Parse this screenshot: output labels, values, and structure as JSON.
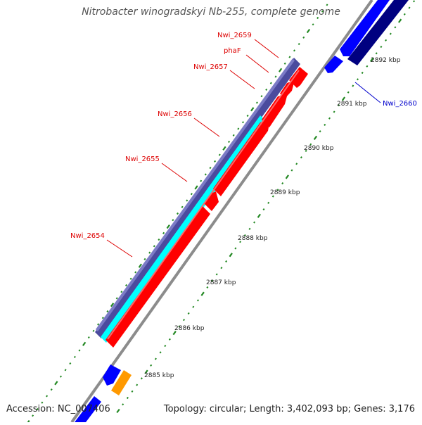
{
  "header": {
    "title": "Nitrobacter winogradskyi Nb-255, complete genome"
  },
  "footer": {
    "accession": "Accession: NC_007406",
    "summary": "Topology: circular; Length: 3,402,093 bp; Genes: 3,176"
  },
  "colors": {
    "backbone": "#8c8c8c",
    "forward_cds": "#ff0000",
    "reverse_cds": "#0000ff",
    "reverse_cds_dark": "#000080",
    "gene_group_overlay": "#4b4b9e",
    "cyan_feature": "#00ffff",
    "orange_feature": "#ff9900",
    "tick": "#228822",
    "label_forward": "#dd0000",
    "label_reverse": "#0000cc"
  },
  "gene_labels": [
    {
      "name": "Nwi_2659",
      "strand": "forward"
    },
    {
      "name": "phaF",
      "strand": "forward"
    },
    {
      "name": "Nwi_2657",
      "strand": "forward"
    },
    {
      "name": "Nwi_2656",
      "strand": "forward"
    },
    {
      "name": "Nwi_2655",
      "strand": "forward"
    },
    {
      "name": "Nwi_2654",
      "strand": "forward"
    },
    {
      "name": "Nwi_2660",
      "strand": "reverse"
    }
  ],
  "scale_labels": [
    "2885 kbp",
    "2886 kbp",
    "2887 kbp",
    "2888 kbp",
    "2889 kbp",
    "2890 kbp",
    "2891 kbp",
    "2892 kbp"
  ]
}
